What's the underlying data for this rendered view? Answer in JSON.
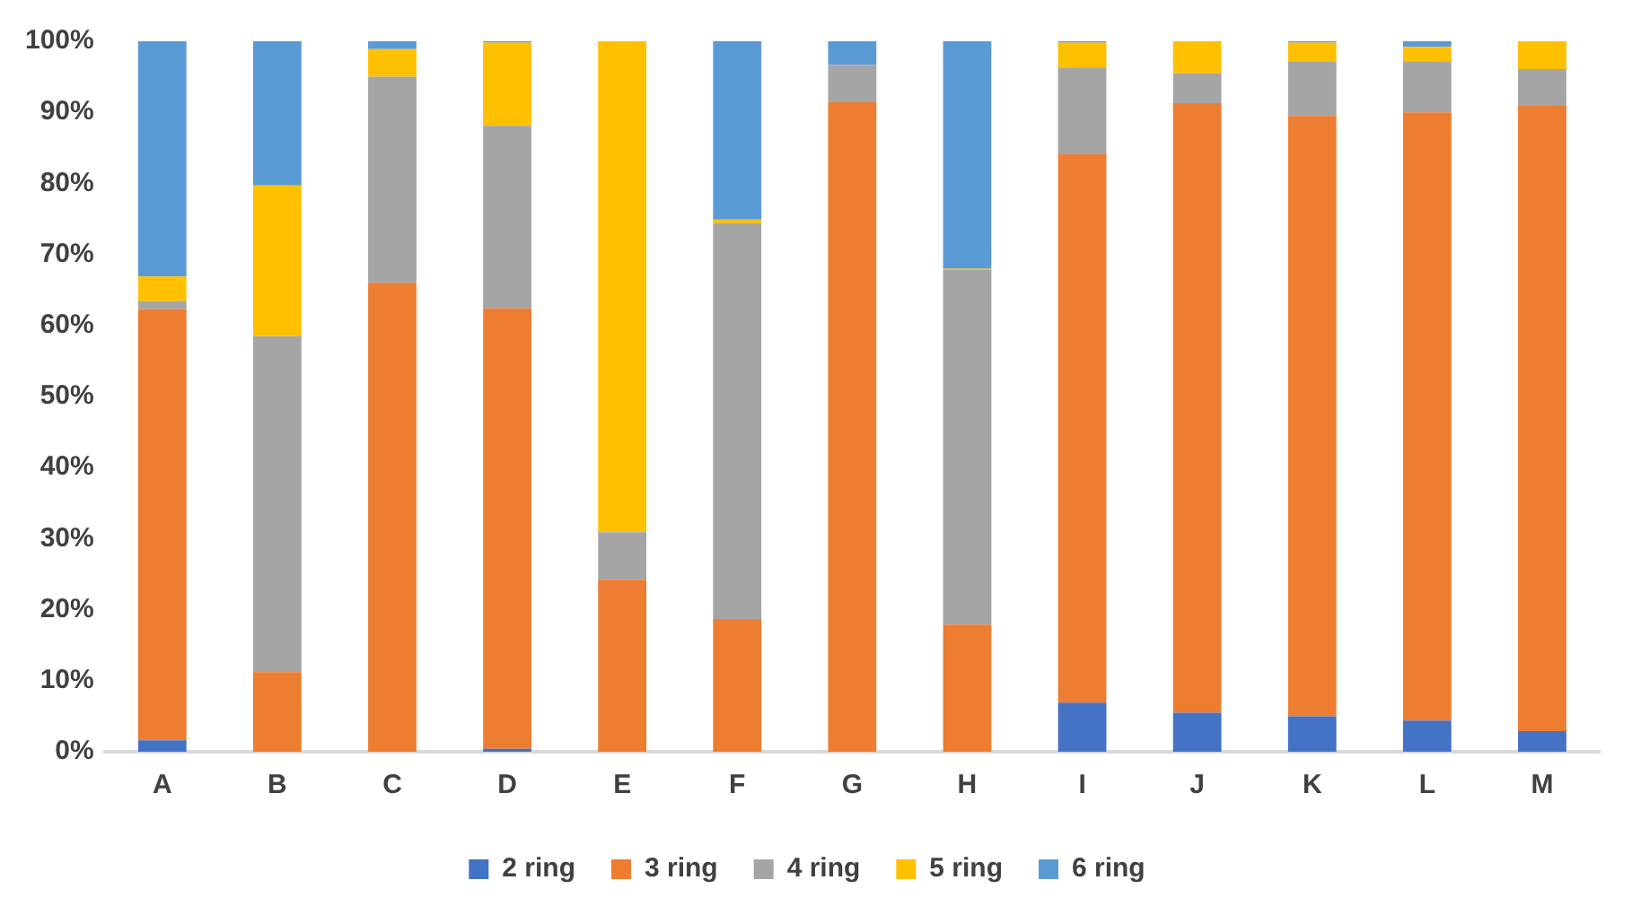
{
  "chart_data": {
    "type": "bar",
    "stacked": true,
    "categories": [
      "A",
      "B",
      "C",
      "D",
      "E",
      "F",
      "G",
      "H",
      "I",
      "J",
      "K",
      "L",
      "M"
    ],
    "series": [
      {
        "name": "2 ring",
        "color": "#4472c4",
        "values": [
          1.6,
          0,
          0,
          0.4,
          0,
          0,
          0,
          0,
          6.9,
          5.5,
          5.0,
          4.4,
          2.9
        ]
      },
      {
        "name": "3 ring",
        "color": "#ed7d31",
        "values": [
          60.7,
          11.2,
          66.0,
          62.0,
          24.2,
          18.7,
          91.4,
          17.9,
          77.2,
          85.8,
          84.5,
          85.6,
          88.0
        ]
      },
      {
        "name": "4 ring",
        "color": "#a5a5a5",
        "values": [
          1.1,
          47.3,
          29.0,
          25.7,
          6.7,
          55.7,
          5.3,
          49.9,
          12.2,
          4.2,
          7.6,
          7.2,
          5.2
        ]
      },
      {
        "name": "5 ring",
        "color": "#ffc000",
        "values": [
          3.5,
          21.2,
          3.9,
          11.7,
          69.1,
          0.5,
          0,
          0.2,
          3.5,
          4.5,
          2.7,
          2.0,
          3.9
        ]
      },
      {
        "name": "6 ring",
        "color": "#5b9bd5",
        "values": [
          33.1,
          20.3,
          1.1,
          0.2,
          0,
          25.1,
          3.3,
          32.0,
          0.2,
          0,
          0.2,
          0.8,
          0
        ]
      }
    ],
    "ylim": [
      0,
      100
    ],
    "yticks": [
      {
        "value": 0,
        "label": "0%"
      },
      {
        "value": 10,
        "label": "10%"
      },
      {
        "value": 20,
        "label": "20%"
      },
      {
        "value": 30,
        "label": "30%"
      },
      {
        "value": 40,
        "label": "40%"
      },
      {
        "value": 50,
        "label": "50%"
      },
      {
        "value": 60,
        "label": "60%"
      },
      {
        "value": 70,
        "label": "70%"
      },
      {
        "value": 80,
        "label": "80%"
      },
      {
        "value": 90,
        "label": "90%"
      },
      {
        "value": 100,
        "label": "100%"
      }
    ],
    "grid": false,
    "legend": "bottom"
  }
}
